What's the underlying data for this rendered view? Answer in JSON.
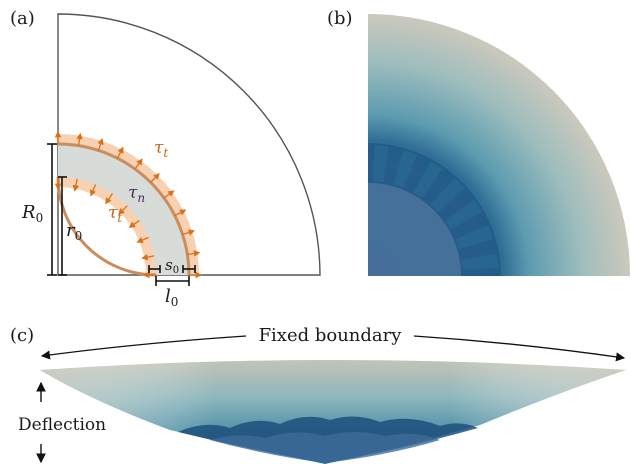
{
  "panels": {
    "a": {
      "label": "(a)"
    },
    "b": {
      "label": "(b)"
    },
    "c": {
      "label": "(c)"
    }
  },
  "symbols": {
    "R0": {
      "base": "R",
      "sub": "0"
    },
    "r0": {
      "base": "r",
      "sub": "0"
    },
    "s0": {
      "base": "s",
      "sub": "0"
    },
    "l0": {
      "base": "l",
      "sub": "0"
    },
    "tau_n": {
      "base": "τ",
      "sub": "n"
    },
    "tau_t": {
      "base": "τ",
      "sub": "t"
    }
  },
  "annotations": {
    "fixed_boundary": "Fixed boundary",
    "deflection": "Deflection"
  },
  "colors": {
    "outline": "#555555",
    "dimension": "#111111",
    "ring_fill": "#d7dcd8",
    "ring_edge": "#c98e5e",
    "halo": "#f6c9a3",
    "arrow": "#d9711a",
    "tau_n": "#4a2d5e",
    "tau_t": "#c4681a",
    "field_light": "#c9c7bc",
    "field_mid": "#6e9fae",
    "field_dark": "#1e4f78"
  }
}
